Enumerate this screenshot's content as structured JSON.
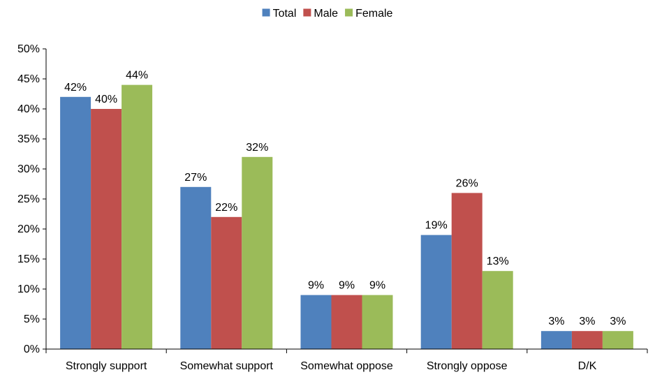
{
  "chart_data": {
    "type": "bar",
    "categories": [
      "Strongly support",
      "Somewhat support",
      "Somewhat oppose",
      "Strongly oppose",
      "D/K"
    ],
    "series": [
      {
        "name": "Total",
        "values": [
          42,
          27,
          9,
          19,
          3
        ],
        "color": "#4F81BD"
      },
      {
        "name": "Male",
        "values": [
          40,
          22,
          9,
          26,
          3
        ],
        "color": "#C0504D"
      },
      {
        "name": "Female",
        "values": [
          44,
          32,
          9,
          13,
          3
        ],
        "color": "#9BBB59"
      }
    ],
    "value_suffix": "%",
    "ylim": [
      0,
      50
    ],
    "yticks": [
      0,
      5,
      10,
      15,
      20,
      25,
      30,
      35,
      40,
      45,
      50
    ],
    "ytick_labels": [
      "0%",
      "5%",
      "10%",
      "15%",
      "20%",
      "25%",
      "30%",
      "35%",
      "40%",
      "45%",
      "50%"
    ],
    "grid": false,
    "legend_position": "top-center",
    "title": "",
    "xlabel": "",
    "ylabel": ""
  }
}
